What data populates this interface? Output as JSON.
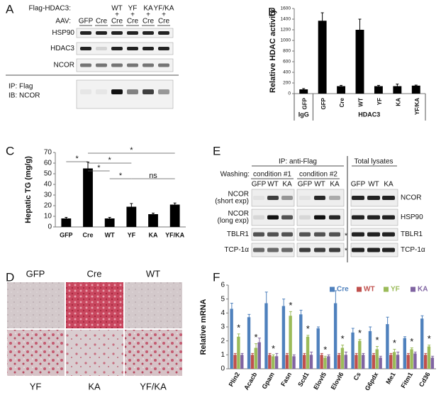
{
  "panel_a": {
    "label": "A",
    "flag_label": "Flag-HDAC3:",
    "aav_label": "AAV:",
    "flag": [
      "WT",
      "YF",
      "KA",
      "YF/KA"
    ],
    "plus": [
      "+",
      "+",
      "+",
      "+"
    ],
    "aav": [
      "GFP",
      "Cre",
      "Cre",
      "Cre",
      "Cre",
      "Cre"
    ],
    "blots": [
      "HSP90",
      "HDAC3",
      "NCOR"
    ],
    "ip": [
      "IP: Flag",
      "IB: NCOR"
    ]
  },
  "panel_d": {
    "label": "D",
    "images": [
      "GFP",
      "Cre",
      "WT",
      "YF",
      "KA",
      "YF/KA"
    ]
  },
  "panel_e": {
    "label": "E",
    "ip": "IP: anti-Flag",
    "washing": "Washing:",
    "conditions": [
      "condition #1",
      "condition #2"
    ],
    "lanes": [
      "GFP",
      "WT",
      "KA",
      "GFP",
      "WT",
      "KA"
    ],
    "total": "Total lysates",
    "total_lanes": [
      "GFP",
      "WT",
      "KA"
    ],
    "left_rows": [
      [
        "NCOR",
        "(short exp)"
      ],
      [
        "NCOR",
        "(long exp)"
      ],
      [
        "TBLR1"
      ],
      [
        "TCP-1α"
      ]
    ],
    "right_rows": [
      "NCOR",
      "HSP90",
      "TBLR1",
      "TCP-1α"
    ],
    "asterisks": [
      "*",
      "*"
    ]
  },
  "chart_data": [
    {
      "type": "bar",
      "label": "B",
      "y_label": "Relative HDAC activity",
      "categories": [
        "GFP",
        "GFP",
        "Cre",
        "WT",
        "YF",
        "KA",
        "YF/KA"
      ],
      "groups": [
        "IgG",
        "HDAC3"
      ],
      "values": [
        80,
        1370,
        140,
        1200,
        140,
        140,
        150
      ],
      "errors": [
        15,
        150,
        15,
        200,
        15,
        40,
        10
      ],
      "color": "#000000",
      "ylim": [
        0,
        1600
      ],
      "yticks": [
        0,
        200,
        400,
        600,
        800,
        1000,
        1200,
        1400,
        1600
      ]
    },
    {
      "type": "bar",
      "label": "C",
      "y_label": "Hepatic TG (mg/g)",
      "categories": [
        "GFP",
        "Cre",
        "WT",
        "YF",
        "KA",
        "YF/KA"
      ],
      "values": [
        8,
        55,
        8,
        19,
        12,
        21
      ],
      "errors": [
        1,
        6,
        1,
        3,
        1,
        1.5
      ],
      "color": "#000000",
      "ylim": [
        0,
        70
      ],
      "yticks": [
        0,
        10,
        20,
        30,
        40,
        50,
        60,
        70
      ],
      "annotations": [
        "*",
        "*",
        "*",
        "*",
        "*",
        "ns"
      ]
    },
    {
      "type": "grouped_bar",
      "label": "F",
      "y_label": "Relative mRNA",
      "categories": [
        "Plin2",
        "Acacb",
        "Gpam",
        "Fasn",
        "Scd1",
        "Elovl5",
        "Elovl6",
        "Cs",
        "G6pdx",
        "Me1",
        "Fitm1",
        "Cd36"
      ],
      "series": [
        {
          "name": "Cre",
          "color": "#4f81bd",
          "values": [
            4.3,
            3.7,
            4.7,
            4.5,
            3.9,
            2.9,
            4.7,
            2.6,
            2.7,
            3.2,
            2.2,
            3.6
          ],
          "errors": [
            0.4,
            0.2,
            0.8,
            0.5,
            0.3,
            0.1,
            0.9,
            0.3,
            0.3,
            0.5,
            0.1,
            0.2
          ]
        },
        {
          "name": "WT",
          "color": "#c0504d",
          "values": [
            1.0,
            1.0,
            1.0,
            1.0,
            1.0,
            1.0,
            1.0,
            1.0,
            1.0,
            1.0,
            1.0,
            1.0
          ],
          "errors": [
            0.1,
            0.1,
            0.1,
            0.1,
            0.1,
            0.1,
            0.1,
            0.1,
            0.1,
            0.1,
            0.1,
            0.1
          ]
        },
        {
          "name": "YF",
          "color": "#9bbb59",
          "values": [
            2.3,
            1.5,
            0.9,
            3.8,
            2.3,
            0.8,
            1.5,
            2.0,
            1.4,
            1.2,
            1.4,
            1.6
          ],
          "errors": [
            0.2,
            0.3,
            0.1,
            0.3,
            0.1,
            0.1,
            0.2,
            0.1,
            0.2,
            0.2,
            0.1,
            0.1
          ]
        },
        {
          "name": "KA",
          "color": "#8064a2",
          "values": [
            1.0,
            1.9,
            0.9,
            0.9,
            1.0,
            0.9,
            1.0,
            1.0,
            0.8,
            1.0,
            1.1,
            0.8
          ],
          "errors": [
            0.1,
            0.3,
            0.2,
            0.1,
            0.2,
            0.1,
            0.2,
            0.1,
            0.1,
            0.2,
            0.1,
            0.1
          ]
        }
      ],
      "ylim": [
        0,
        6
      ],
      "yticks": [
        0,
        1,
        2,
        3,
        4,
        5,
        6
      ],
      "legend": "top-right",
      "annotations": [
        "*",
        "*",
        "*",
        "*",
        "*",
        "*",
        "*",
        "*",
        "*",
        "*",
        "*",
        "*"
      ]
    }
  ]
}
